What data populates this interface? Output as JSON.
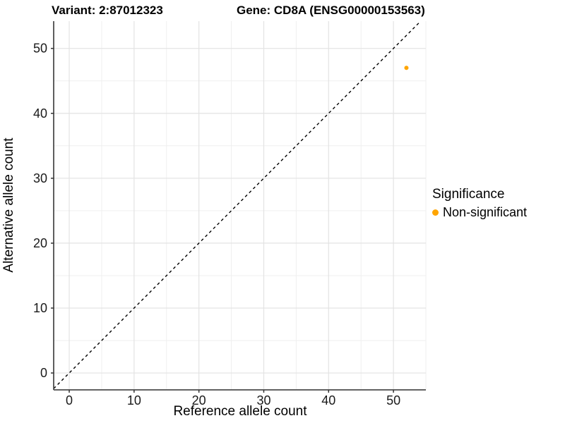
{
  "chart_data": {
    "type": "scatter",
    "titles": {
      "left": "Variant: 2:87012323",
      "right": "Gene: CD8A (ENSG00000153563)"
    },
    "xlabel": "Reference allele count",
    "ylabel": "Alternative allele count",
    "xlim": [
      -2.4,
      55.0
    ],
    "ylim": [
      -2.6,
      54.2
    ],
    "x_ticks": [
      0,
      10,
      20,
      30,
      40,
      50
    ],
    "y_ticks": [
      0,
      10,
      20,
      30,
      40,
      50
    ],
    "minor_tick_step": 5,
    "grid": true,
    "legend_position": "right",
    "identity_line": {
      "slope": 1,
      "intercept": 0,
      "style": "dashed",
      "color": "#000000"
    },
    "series": [
      {
        "name": "Non-significant",
        "color": "#FFA500",
        "points": [
          {
            "x": 52,
            "y": 47
          }
        ]
      }
    ],
    "legend": {
      "title": "Significance",
      "items": [
        {
          "label": "Non-significant",
          "color": "#FFA500"
        }
      ]
    },
    "style": {
      "point_color": "#FFA500",
      "point_radius": 3,
      "grid_major_color": "#E3E3E3",
      "grid_minor_color": "#EFEFEF",
      "axis_line_color": "#4D4D4D",
      "tick_color": "#333333",
      "dashed_line_color": "#000000"
    }
  }
}
